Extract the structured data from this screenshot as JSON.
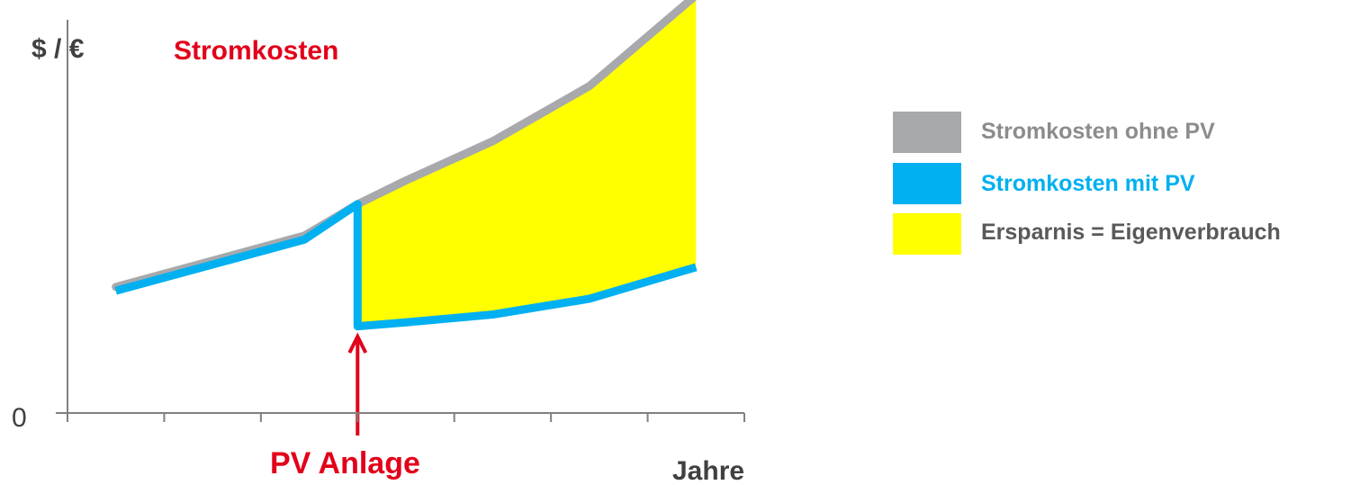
{
  "chart_data": {
    "type": "line",
    "title": "Stromkosten",
    "ylabel": "$ / €",
    "xlabel": "Jahre",
    "y_tick_labels": [
      "0"
    ],
    "annotation": "PV Anlage",
    "x_ticks": [
      0,
      1,
      2,
      3,
      4,
      5,
      6,
      7
    ],
    "xlim": [
      0,
      7
    ],
    "ylim": [
      0,
      100
    ],
    "x": [
      0.5,
      2.45,
      3.0,
      3.5,
      4.4,
      5.4,
      6.5
    ],
    "series": [
      {
        "name": "Stromkosten ohne PV",
        "color": "#a7a9ac",
        "x": [
          0.5,
          2.45,
          3.0,
          3.5,
          4.4,
          5.4,
          6.5
        ],
        "values": [
          32,
          45,
          53,
          59,
          69,
          83,
          106
        ]
      },
      {
        "name": "Stromkosten mit PV",
        "color": "#00b0f0",
        "x": [
          0.5,
          2.45,
          3.0,
          3.0,
          3.5,
          4.4,
          5.4,
          6.5
        ],
        "values": [
          31,
          44,
          53,
          22,
          23,
          25,
          29,
          37
        ]
      },
      {
        "name": "Ersparnis = Eigenverbrauch",
        "color": "#ffff00",
        "type": "area"
      }
    ],
    "annotation_x": 3.0,
    "grid": false,
    "legend_position": "right"
  },
  "colors": {
    "title": "#e2001a",
    "annotation": "#e2001a",
    "axis": "#808080",
    "text_dark": "#404040",
    "legend_gray_text": "#8c8c8c",
    "legend_blue_text": "#00b0f0",
    "legend_dark_text": "#595959"
  }
}
